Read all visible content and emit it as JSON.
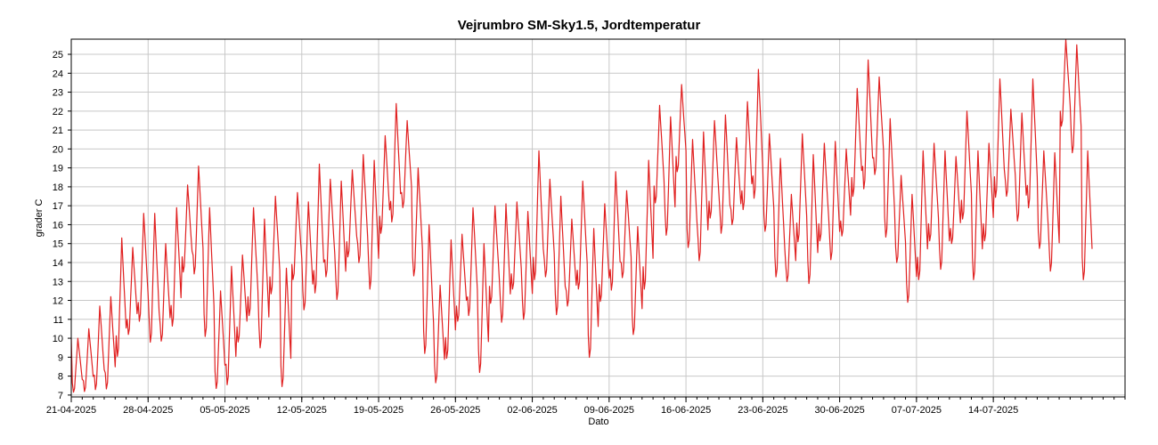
{
  "chart_data": {
    "type": "line",
    "title": "Vejrumbro SM-Sky1.5, Jordtemperatur",
    "xlabel": "Dato",
    "ylabel": "grader C",
    "ylim": [
      6.9,
      25.8
    ],
    "xlim": [
      "2025-04-21",
      "2025-07-26"
    ],
    "y_ticks": [
      7,
      8,
      9,
      10,
      11,
      12,
      13,
      14,
      15,
      16,
      17,
      18,
      19,
      20,
      21,
      22,
      23,
      24,
      25
    ],
    "x_ticks": [
      "21-04-2025",
      "28-04-2025",
      "05-05-2025",
      "12-05-2025",
      "19-05-2025",
      "26-05-2025",
      "02-06-2025",
      "09-06-2025",
      "16-06-2025",
      "23-06-2025",
      "30-06-2025",
      "07-07-2025",
      "14-07-2025"
    ],
    "grid": true,
    "line_color": "#e02020",
    "series": [
      {
        "points": [
          [
            "2025-04-21",
            10.0
          ],
          [
            "2025-04-22",
            10.5
          ],
          [
            "2025-04-23",
            11.7
          ],
          [
            "2025-04-24",
            12.2
          ],
          [
            "2025-04-25",
            15.3
          ],
          [
            "2025-04-26",
            14.8
          ],
          [
            "2025-04-27",
            16.6
          ],
          [
            "2025-04-28",
            16.6
          ],
          [
            "2025-04-29",
            15.0
          ],
          [
            "2025-04-30",
            16.9
          ],
          [
            "2025-05-01",
            18.1
          ],
          [
            "2025-05-02",
            19.1
          ],
          [
            "2025-05-03",
            16.9
          ],
          [
            "2025-05-04",
            12.5
          ],
          [
            "2025-05-05",
            13.8
          ],
          [
            "2025-05-06",
            14.4
          ],
          [
            "2025-05-07",
            16.9
          ],
          [
            "2025-05-08",
            16.3
          ],
          [
            "2025-05-09",
            17.5
          ],
          [
            "2025-05-10",
            13.7
          ],
          [
            "2025-05-11",
            17.7
          ],
          [
            "2025-05-12",
            17.2
          ],
          [
            "2025-05-13",
            19.2
          ],
          [
            "2025-05-14",
            18.4
          ],
          [
            "2025-05-15",
            18.3
          ],
          [
            "2025-05-16",
            18.9
          ],
          [
            "2025-05-17",
            19.7
          ],
          [
            "2025-05-18",
            19.4
          ],
          [
            "2025-05-19",
            20.7
          ],
          [
            "2025-05-20",
            22.4
          ],
          [
            "2025-05-21",
            21.5
          ],
          [
            "2025-05-22",
            19.0
          ],
          [
            "2025-05-23",
            16.0
          ],
          [
            "2025-05-24",
            12.8
          ],
          [
            "2025-05-25",
            15.2
          ],
          [
            "2025-05-26",
            15.5
          ],
          [
            "2025-05-27",
            16.9
          ],
          [
            "2025-05-28",
            15.0
          ],
          [
            "2025-05-29",
            17.0
          ],
          [
            "2025-05-30",
            17.1
          ],
          [
            "2025-05-31",
            17.2
          ],
          [
            "2025-06-01",
            16.7
          ],
          [
            "2025-06-02",
            19.9
          ],
          [
            "2025-06-03",
            18.4
          ],
          [
            "2025-06-04",
            17.5
          ],
          [
            "2025-06-05",
            16.3
          ],
          [
            "2025-06-06",
            18.3
          ],
          [
            "2025-06-07",
            15.8
          ],
          [
            "2025-06-08",
            17.1
          ],
          [
            "2025-06-09",
            18.8
          ],
          [
            "2025-06-10",
            17.8
          ],
          [
            "2025-06-11",
            15.9
          ],
          [
            "2025-06-12",
            19.4
          ],
          [
            "2025-06-13",
            22.3
          ],
          [
            "2025-06-14",
            21.7
          ],
          [
            "2025-06-15",
            23.4
          ],
          [
            "2025-06-16",
            20.5
          ],
          [
            "2025-06-17",
            20.9
          ],
          [
            "2025-06-18",
            21.5
          ],
          [
            "2025-06-19",
            21.8
          ],
          [
            "2025-06-20",
            20.6
          ],
          [
            "2025-06-21",
            22.5
          ],
          [
            "2025-06-22",
            24.2
          ],
          [
            "2025-06-23",
            20.8
          ],
          [
            "2025-06-24",
            19.5
          ],
          [
            "2025-06-25",
            17.6
          ],
          [
            "2025-06-26",
            20.8
          ],
          [
            "2025-06-27",
            19.7
          ],
          [
            "2025-06-28",
            20.3
          ],
          [
            "2025-06-29",
            20.4
          ],
          [
            "2025-06-30",
            20.0
          ],
          [
            "2025-07-01",
            23.2
          ],
          [
            "2025-07-02",
            24.7
          ],
          [
            "2025-07-03",
            23.8
          ],
          [
            "2025-07-04",
            21.6
          ],
          [
            "2025-07-05",
            18.6
          ],
          [
            "2025-07-06",
            17.6
          ],
          [
            "2025-07-07",
            19.9
          ],
          [
            "2025-07-08",
            20.3
          ],
          [
            "2025-07-09",
            19.9
          ],
          [
            "2025-07-10",
            19.6
          ],
          [
            "2025-07-11",
            22.0
          ],
          [
            "2025-07-12",
            19.9
          ],
          [
            "2025-07-13",
            20.3
          ],
          [
            "2025-07-14",
            23.7
          ],
          [
            "2025-07-15",
            22.1
          ],
          [
            "2025-07-16",
            21.9
          ],
          [
            "2025-07-17",
            23.7
          ],
          [
            "2025-07-18",
            19.9
          ],
          [
            "2025-07-19",
            19.8
          ],
          [
            "2025-07-20",
            25.8
          ],
          [
            "2025-07-21",
            25.5
          ],
          [
            "2025-07-22",
            19.9
          ]
        ]
      }
    ]
  }
}
